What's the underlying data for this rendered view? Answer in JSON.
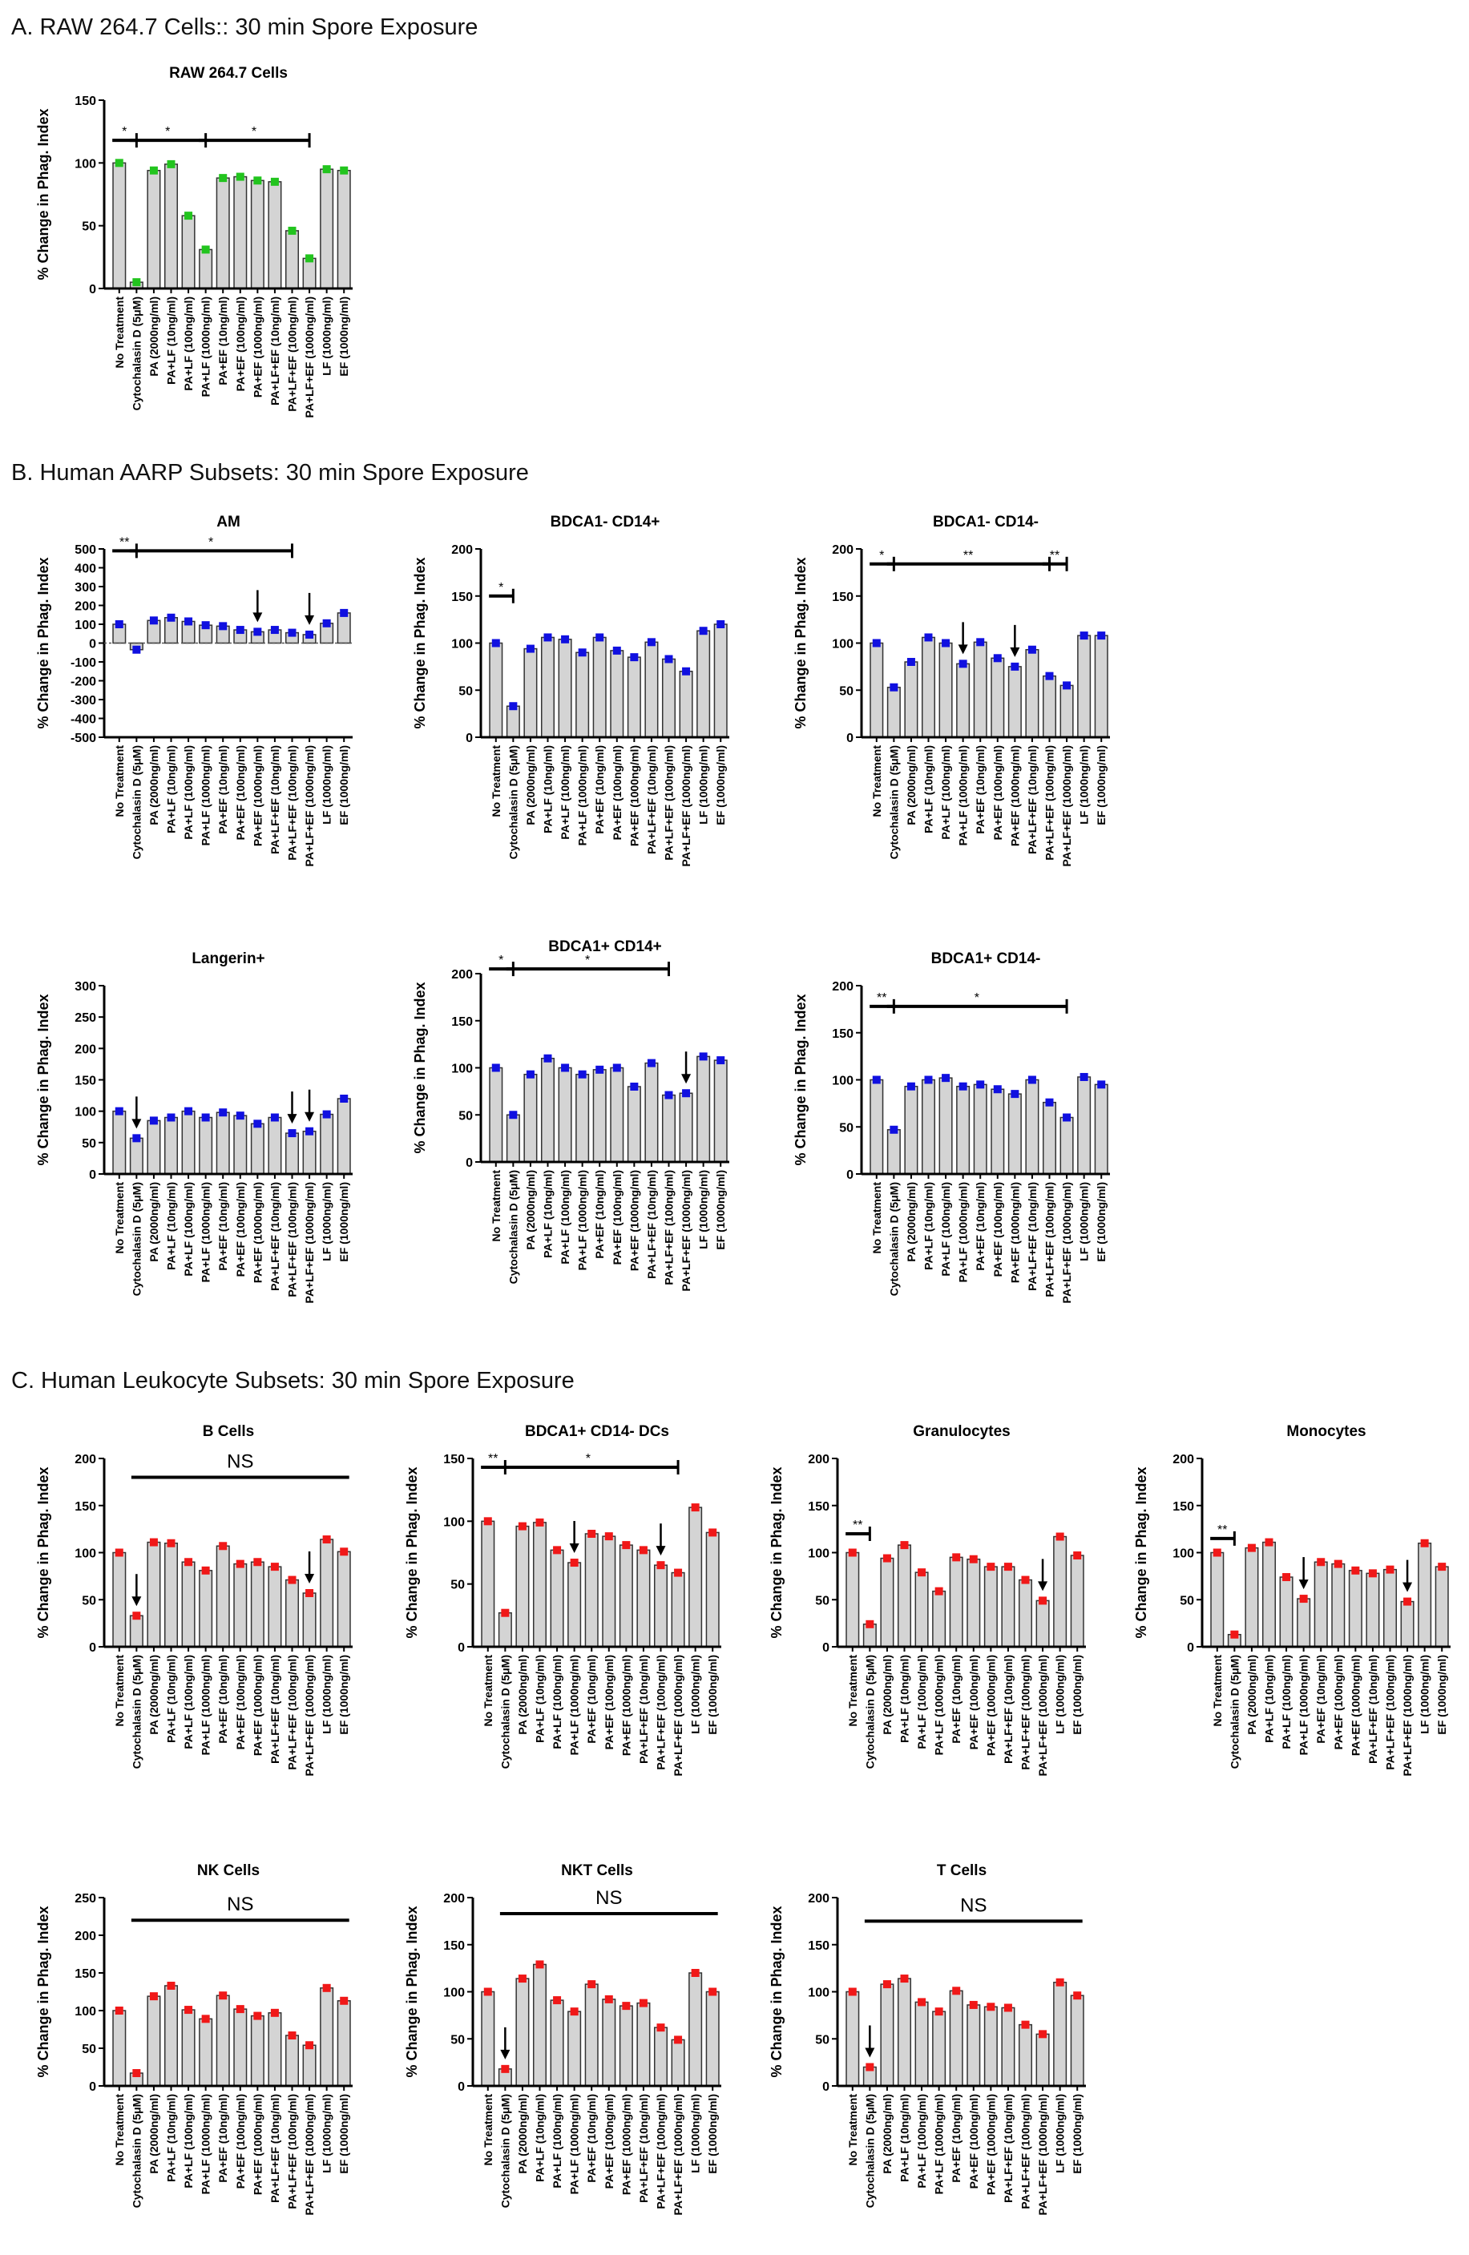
{
  "sections": {
    "a": "A.  RAW 264.7 Cells:: 30 min Spore Exposure",
    "b": "B.  Human AARP Subsets: 30 min Spore Exposure",
    "c": "C.  Human Leukocyte Subsets: 30 min Spore Exposure"
  },
  "chart_data": [
    {
      "id": "raw",
      "type": "bar",
      "title": "RAW 264.7 Cells",
      "ylabel": "% Change in Phag. Index",
      "ylim": [
        0,
        150
      ],
      "yticks": [
        0,
        50,
        100,
        150
      ],
      "color": "#22c41e",
      "marker": "square",
      "categories": [
        "No Treatment",
        "Cytochalasin D (5μM)",
        "PA (2000ng/ml)",
        "PA+LF (10ng/ml)",
        "PA+LF (100ng/ml)",
        "PA+LF (1000ng/ml)",
        "PA+EF (10ng/ml)",
        "PA+EF (100ng/ml)",
        "PA+EF (1000ng/ml)",
        "PA+LF+EF (10ng/ml)",
        "PA+LF+EF (100ng/ml)",
        "PA+LF+EF (1000ng/ml)",
        "LF (1000ng/ml)",
        "EF (1000ng/ml)"
      ],
      "values": [
        100,
        5,
        94,
        99,
        58,
        31,
        88,
        89,
        86,
        85,
        46,
        24,
        95,
        94
      ],
      "significance": [
        {
          "from": 0,
          "to": 1,
          "label": "*",
          "y": 118
        },
        {
          "from": 1,
          "to": 5,
          "label": "*",
          "y": 118
        },
        {
          "from": 5,
          "to": 11,
          "label": "*",
          "y": 118
        }
      ],
      "arrows": []
    },
    {
      "id": "am",
      "type": "bar",
      "title": "AM",
      "ylabel": "% Change in Phag. Index",
      "ylim": [
        -500,
        500
      ],
      "yticks": [
        -500,
        -400,
        -300,
        -200,
        -100,
        0,
        100,
        200,
        300,
        400,
        500
      ],
      "color": "#1010e0",
      "marker": "circle",
      "categories": [
        "No Treatment",
        "Cytochalasin D (5μM)",
        "PA (2000ng/ml)",
        "PA+LF (10ng/ml)",
        "PA+LF (100ng/ml)",
        "PA+LF (1000ng/ml)",
        "PA+EF (10ng/ml)",
        "PA+EF (100ng/ml)",
        "PA+EF (1000ng/ml)",
        "PA+LF+EF (10ng/ml)",
        "PA+LF+EF (100ng/ml)",
        "PA+LF+EF (1000ng/ml)",
        "LF (1000ng/ml)",
        "EF (1000ng/ml)"
      ],
      "values": [
        100,
        -35,
        120,
        135,
        115,
        95,
        90,
        70,
        60,
        70,
        55,
        45,
        105,
        160
      ],
      "significance": [
        {
          "from": 0,
          "to": 1,
          "label": "**",
          "y": 490
        },
        {
          "from": 1,
          "to": 10,
          "label": "*",
          "y": 490
        }
      ],
      "arrows": [
        8,
        11
      ]
    },
    {
      "id": "b1",
      "type": "bar",
      "title": "BDCA1- CD14+",
      "ylabel": "% Change in Phag. Index",
      "ylim": [
        0,
        200
      ],
      "yticks": [
        0,
        50,
        100,
        150,
        200
      ],
      "color": "#1010e0",
      "marker": "triangle-down",
      "categories": [
        "No Treatment",
        "Cytochalasin D (5μM)",
        "PA (2000ng/ml)",
        "PA+LF (10ng/ml)",
        "PA+LF (100ng/ml)",
        "PA+LF (1000ng/ml)",
        "PA+EF (10ng/ml)",
        "PA+EF (100ng/ml)",
        "PA+EF (1000ng/ml)",
        "PA+LF+EF (10ng/ml)",
        "PA+LF+EF (100ng/ml)",
        "PA+LF+EF (1000ng/ml)",
        "LF (1000ng/ml)",
        "EF (1000ng/ml)"
      ],
      "values": [
        100,
        33,
        94,
        106,
        104,
        90,
        106,
        92,
        85,
        101,
        83,
        70,
        113,
        120
      ],
      "significance": [
        {
          "from": 0,
          "to": 1,
          "label": "*",
          "y": 150
        }
      ],
      "arrows": []
    },
    {
      "id": "b2",
      "type": "bar",
      "title": "BDCA1- CD14-",
      "ylabel": "% Change in Phag. Index",
      "ylim": [
        0,
        200
      ],
      "yticks": [
        0,
        50,
        100,
        150,
        200
      ],
      "color": "#1010e0",
      "marker": "star",
      "categories": [
        "No Treatment",
        "Cytochalasin D (5μM)",
        "PA (2000ng/ml)",
        "PA+LF (10ng/ml)",
        "PA+LF (100ng/ml)",
        "PA+LF (1000ng/ml)",
        "PA+EF (10ng/ml)",
        "PA+EF (100ng/ml)",
        "PA+EF (1000ng/ml)",
        "PA+LF+EF (10ng/ml)",
        "PA+LF+EF (100ng/ml)",
        "PA+LF+EF (1000ng/ml)",
        "LF (1000ng/ml)",
        "EF (1000ng/ml)"
      ],
      "values": [
        100,
        53,
        80,
        106,
        100,
        78,
        101,
        84,
        75,
        93,
        65,
        55,
        108,
        108
      ],
      "significance": [
        {
          "from": 0,
          "to": 1,
          "label": "*",
          "y": 184
        },
        {
          "from": 1,
          "to": 10,
          "label": "**",
          "y": 184
        },
        {
          "from": 10,
          "to": 11,
          "label": "**",
          "y": 184
        }
      ],
      "arrows": [
        5,
        8
      ]
    },
    {
      "id": "b3",
      "type": "bar",
      "title": "Langerin+",
      "ylabel": "% Change in Phag. Index",
      "ylim": [
        0,
        300
      ],
      "yticks": [
        0,
        50,
        100,
        150,
        200,
        250,
        300
      ],
      "color": "#1010e0",
      "marker": "square",
      "categories": [
        "No Treatment",
        "Cytochalasin D (5μM)",
        "PA (2000ng/ml)",
        "PA+LF (10ng/ml)",
        "PA+LF (100ng/ml)",
        "PA+LF (1000ng/ml)",
        "PA+EF (10ng/ml)",
        "PA+EF (100ng/ml)",
        "PA+EF (1000ng/ml)",
        "PA+LF+EF (10ng/ml)",
        "PA+LF+EF (100ng/ml)",
        "PA+LF+EF (1000ng/ml)",
        "LF (1000ng/ml)",
        "EF (1000ng/ml)"
      ],
      "values": [
        100,
        57,
        85,
        90,
        100,
        90,
        98,
        93,
        80,
        90,
        65,
        68,
        95,
        120
      ],
      "significance": [],
      "arrows": [
        1,
        10,
        11
      ]
    },
    {
      "id": "b4",
      "type": "bar",
      "title": "BDCA1+ CD14+",
      "ylabel": "% Change in Phag. Index",
      "ylim": [
        0,
        200
      ],
      "yticks": [
        0,
        50,
        100,
        150,
        200
      ],
      "color": "#1010e0",
      "marker": "triangle-up",
      "categories": [
        "No Treatment",
        "Cytochalasin D (5μM)",
        "PA (2000ng/ml)",
        "PA+LF (10ng/ml)",
        "PA+LF (100ng/ml)",
        "PA+LF (1000ng/ml)",
        "PA+EF (10ng/ml)",
        "PA+EF (100ng/ml)",
        "PA+EF (1000ng/ml)",
        "PA+LF+EF (10ng/ml)",
        "PA+LF+EF (100ng/ml)",
        "PA+LF+EF (1000ng/ml)",
        "LF (1000ng/ml)",
        "EF (1000ng/ml)"
      ],
      "values": [
        100,
        50,
        93,
        110,
        100,
        93,
        98,
        100,
        80,
        105,
        71,
        73,
        112,
        108
      ],
      "significance": [
        {
          "from": 0,
          "to": 1,
          "label": "*",
          "y": 205
        },
        {
          "from": 1,
          "to": 10,
          "label": "*",
          "y": 205
        }
      ],
      "arrows": [
        11
      ]
    },
    {
      "id": "b5",
      "type": "bar",
      "title": "BDCA1+ CD14-",
      "ylabel": "% Change in Phag. Index",
      "ylim": [
        0,
        200
      ],
      "yticks": [
        0,
        50,
        100,
        150,
        200
      ],
      "color": "#1010e0",
      "marker": "diamond",
      "categories": [
        "No Treatment",
        "Cytochalasin D (5μM)",
        "PA (2000ng/ml)",
        "PA+LF (10ng/ml)",
        "PA+LF (100ng/ml)",
        "PA+LF (1000ng/ml)",
        "PA+EF (10ng/ml)",
        "PA+EF (100ng/ml)",
        "PA+EF (1000ng/ml)",
        "PA+LF+EF (10ng/ml)",
        "PA+LF+EF (100ng/ml)",
        "PA+LF+EF (1000ng/ml)",
        "LF (1000ng/ml)",
        "EF (1000ng/ml)"
      ],
      "values": [
        100,
        47,
        93,
        100,
        102,
        93,
        95,
        90,
        85,
        100,
        76,
        60,
        103,
        95
      ],
      "significance": [
        {
          "from": 0,
          "to": 1,
          "label": "**",
          "y": 178
        },
        {
          "from": 1,
          "to": 11,
          "label": "*",
          "y": 178
        }
      ],
      "arrows": []
    },
    {
      "id": "c1",
      "type": "bar",
      "title": "B Cells",
      "ylabel": "% Change in Phag. Index",
      "ylim": [
        0,
        200
      ],
      "yticks": [
        0,
        50,
        100,
        150,
        200
      ],
      "color": "#f01818",
      "marker": "triangle-down",
      "categories": [
        "No Treatment",
        "Cytochalasin D (5μM)",
        "PA (2000ng/ml)",
        "PA+LF (10ng/ml)",
        "PA+LF (100ng/ml)",
        "PA+LF (1000ng/ml)",
        "PA+EF (10ng/ml)",
        "PA+EF (100ng/ml)",
        "PA+EF (1000ng/ml)",
        "PA+LF+EF (10ng/ml)",
        "PA+LF+EF (100ng/ml)",
        "PA+LF+EF (1000ng/ml)",
        "LF (1000ng/ml)",
        "EF (1000ng/ml)"
      ],
      "values": [
        100,
        33,
        111,
        110,
        90,
        81,
        107,
        88,
        90,
        85,
        71,
        57,
        114,
        101
      ],
      "significance": [
        {
          "from": 1,
          "to": 13,
          "label": "NS",
          "y": 180,
          "plain": true
        }
      ],
      "arrows": [
        1,
        11
      ]
    },
    {
      "id": "c2",
      "type": "bar",
      "title": "BDCA1+ CD14- DCs",
      "ylabel": "% Change in Phag. Index",
      "ylim": [
        0,
        150
      ],
      "yticks": [
        0,
        50,
        100,
        150
      ],
      "color": "#f01818",
      "marker": "star",
      "categories": [
        "No Treatment",
        "Cytochalasin D (5μM)",
        "PA (2000ng/ml)",
        "PA+LF (10ng/ml)",
        "PA+LF (100ng/ml)",
        "PA+LF (1000ng/ml)",
        "PA+EF (10ng/ml)",
        "PA+EF (100ng/ml)",
        "PA+EF (1000ng/ml)",
        "PA+LF+EF (10ng/ml)",
        "PA+LF+EF (100ng/ml)",
        "PA+LF+EF (1000ng/ml)",
        "LF (1000ng/ml)",
        "EF (1000ng/ml)"
      ],
      "values": [
        100,
        27,
        96,
        99,
        77,
        67,
        90,
        88,
        81,
        77,
        65,
        59,
        111,
        91
      ],
      "significance": [
        {
          "from": 0,
          "to": 1,
          "label": "**",
          "y": 143
        },
        {
          "from": 1,
          "to": 11,
          "label": "*",
          "y": 143
        }
      ],
      "arrows": [
        5,
        10
      ]
    },
    {
      "id": "c3",
      "type": "bar",
      "title": "Granulocytes",
      "ylabel": "% Change in Phag. Index",
      "ylim": [
        0,
        200
      ],
      "yticks": [
        0,
        50,
        100,
        150,
        200
      ],
      "color": "#f01818",
      "marker": "circle",
      "categories": [
        "No Treatment",
        "Cytochalasin D (5μM)",
        "PA (2000ng/ml)",
        "PA+LF (10ng/ml)",
        "PA+LF (100ng/ml)",
        "PA+LF (1000ng/ml)",
        "PA+EF (10ng/ml)",
        "PA+EF (100ng/ml)",
        "PA+EF (1000ng/ml)",
        "PA+LF+EF (10ng/ml)",
        "PA+LF+EF (100ng/ml)",
        "PA+LF+EF (1000ng/ml)",
        "LF (1000ng/ml)",
        "EF (1000ng/ml)"
      ],
      "values": [
        100,
        24,
        94,
        108,
        79,
        59,
        95,
        93,
        85,
        85,
        71,
        49,
        117,
        97
      ],
      "significance": [
        {
          "from": 0,
          "to": 1,
          "label": "**",
          "y": 120
        }
      ],
      "arrows": [
        11
      ]
    },
    {
      "id": "c4",
      "type": "bar",
      "title": "Monocytes",
      "ylabel": "% Change in Phag. Index",
      "ylim": [
        0,
        200
      ],
      "yticks": [
        0,
        50,
        100,
        150,
        200
      ],
      "color": "#f01818",
      "marker": "diamond",
      "categories": [
        "No Treatment",
        "Cytochalasin D (5μM)",
        "PA (2000ng/ml)",
        "PA+LF (10ng/ml)",
        "PA+LF (100ng/ml)",
        "PA+LF (1000ng/ml)",
        "PA+EF (10ng/ml)",
        "PA+EF (100ng/ml)",
        "PA+EF (1000ng/ml)",
        "PA+LF+EF (10ng/ml)",
        "PA+LF+EF (100ng/ml)",
        "PA+LF+EF (1000ng/ml)",
        "LF (1000ng/ml)",
        "EF (1000ng/ml)"
      ],
      "values": [
        100,
        13,
        105,
        111,
        74,
        51,
        90,
        88,
        81,
        78,
        82,
        48,
        110,
        85
      ],
      "significance": [
        {
          "from": 0,
          "to": 1,
          "label": "**",
          "y": 115
        }
      ],
      "arrows": [
        5,
        11
      ]
    },
    {
      "id": "c5",
      "type": "bar",
      "title": "NK Cells",
      "ylabel": "% Change in Phag. Index",
      "ylim": [
        0,
        250
      ],
      "yticks": [
        0,
        50,
        100,
        150,
        200,
        250
      ],
      "color": "#f01818",
      "marker": "circle",
      "categories": [
        "No Treatment",
        "Cytochalasin D (5μM)",
        "PA (2000ng/ml)",
        "PA+LF (10ng/ml)",
        "PA+LF (100ng/ml)",
        "PA+LF (1000ng/ml)",
        "PA+EF (10ng/ml)",
        "PA+EF (100ng/ml)",
        "PA+EF (1000ng/ml)",
        "PA+LF+EF (10ng/ml)",
        "PA+LF+EF (100ng/ml)",
        "PA+LF+EF (1000ng/ml)",
        "LF (1000ng/ml)",
        "EF (1000ng/ml)"
      ],
      "values": [
        100,
        17,
        119,
        133,
        101,
        89,
        120,
        102,
        93,
        97,
        67,
        54,
        130,
        113
      ],
      "significance": [
        {
          "from": 1,
          "to": 13,
          "label": "NS",
          "y": 220,
          "plain": true
        }
      ],
      "arrows": []
    },
    {
      "id": "c6",
      "type": "bar",
      "title": "NKT Cells",
      "ylabel": "% Change in Phag. Index",
      "ylim": [
        0,
        200
      ],
      "yticks": [
        0,
        50,
        100,
        150,
        200
      ],
      "color": "#f01818",
      "marker": "square",
      "categories": [
        "No Treatment",
        "Cytochalasin D (5μM)",
        "PA (2000ng/ml)",
        "PA+LF (10ng/ml)",
        "PA+LF (100ng/ml)",
        "PA+LF (1000ng/ml)",
        "PA+EF (10ng/ml)",
        "PA+EF (100ng/ml)",
        "PA+EF (1000ng/ml)",
        "PA+LF+EF (10ng/ml)",
        "PA+LF+EF (100ng/ml)",
        "PA+LF+EF (1000ng/ml)",
        "LF (1000ng/ml)",
        "EF (1000ng/ml)"
      ],
      "values": [
        100,
        18,
        114,
        129,
        91,
        79,
        108,
        92,
        85,
        88,
        62,
        49,
        120,
        100
      ],
      "significance": [
        {
          "from": 1,
          "to": 13,
          "label": "NS",
          "y": 183,
          "plain": true
        }
      ],
      "arrows": [
        1
      ]
    },
    {
      "id": "c7",
      "type": "bar",
      "title": "T Cells",
      "ylabel": "% Change in Phag. Index",
      "ylim": [
        0,
        200
      ],
      "yticks": [
        0,
        50,
        100,
        150,
        200
      ],
      "color": "#f01818",
      "marker": "triangle-up",
      "categories": [
        "No Treatment",
        "Cytochalasin D (5μM)",
        "PA (2000ng/ml)",
        "PA+LF (10ng/ml)",
        "PA+LF (100ng/ml)",
        "PA+LF (1000ng/ml)",
        "PA+EF (10ng/ml)",
        "PA+EF (100ng/ml)",
        "PA+EF (1000ng/ml)",
        "PA+LF+EF (10ng/ml)",
        "PA+LF+EF (100ng/ml)",
        "PA+LF+EF (1000ng/ml)",
        "LF (1000ng/ml)",
        "EF (1000ng/ml)"
      ],
      "values": [
        100,
        20,
        108,
        114,
        89,
        79,
        101,
        86,
        84,
        83,
        65,
        55,
        110,
        96
      ],
      "significance": [
        {
          "from": 1,
          "to": 13,
          "label": "NS",
          "y": 175,
          "plain": true
        }
      ],
      "arrows": [
        1
      ]
    }
  ]
}
